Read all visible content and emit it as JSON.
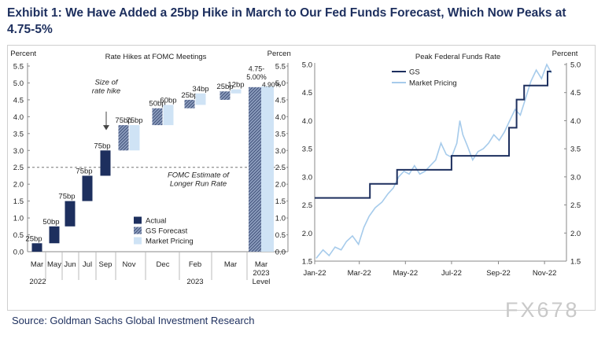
{
  "title": "Exhibit 1: We Have Added a 25bp Hike in March to Our Fed Funds Forecast, Which Now Peaks at 4.75-5%",
  "source": "Source: Goldman Sachs Global Investment Research",
  "watermark": "FX678",
  "colors": {
    "title": "#1d2f5e",
    "actual": "#1d2f5e",
    "forecast": "#6b7fa3",
    "market": "#cfe3f5",
    "market_line": "#a6cbeb"
  },
  "chart_data": [
    {
      "type": "bar",
      "title": "Rate Hikes at FOMC Meetings",
      "ylabel_left": "Percent",
      "ylabel_right": "Percent",
      "ylim": [
        0,
        5.5
      ],
      "yticks": [
        "0.0",
        "0.5",
        "1.0",
        "1.5",
        "2.0",
        "2.5",
        "3.0",
        "3.5",
        "4.0",
        "4.5",
        "5.0",
        "5.5"
      ],
      "categories": [
        "Mar",
        "May",
        "Jun",
        "Jul",
        "Sep",
        "Nov",
        "Dec",
        "Feb",
        "Mar",
        "Mar 2023 Level"
      ],
      "category_lines": [
        [
          "Mar"
        ],
        [
          "May"
        ],
        [
          "Jun"
        ],
        [
          "Jul"
        ],
        [
          "Sep"
        ],
        [
          "Nov"
        ],
        [
          "Dec"
        ],
        [
          "Feb"
        ],
        [
          "Mar"
        ],
        [
          "Mar",
          "2023",
          "Level"
        ]
      ],
      "year_labels": [
        "2022",
        "2023"
      ],
      "waterfall": [
        {
          "cat": "Mar",
          "type": "actual",
          "start": 0.0,
          "end": 0.25,
          "label": "25bp"
        },
        {
          "cat": "May",
          "type": "actual",
          "start": 0.25,
          "end": 0.75,
          "label": "50bp"
        },
        {
          "cat": "Jun",
          "type": "actual",
          "start": 0.75,
          "end": 1.5,
          "label": "75bp"
        },
        {
          "cat": "Jul",
          "type": "actual",
          "start": 1.5,
          "end": 2.25,
          "label": "75bp"
        },
        {
          "cat": "Sep",
          "type": "actual",
          "start": 2.25,
          "end": 3.0,
          "label": "75bp"
        },
        {
          "cat": "Nov",
          "type": "forecast",
          "start": 3.0,
          "end": 3.75,
          "label": "75bp"
        },
        {
          "cat": "Nov",
          "type": "market",
          "start": 3.0,
          "end": 3.75,
          "label": "75bp"
        },
        {
          "cat": "Dec",
          "type": "forecast",
          "start": 3.75,
          "end": 4.25,
          "label": "50bp"
        },
        {
          "cat": "Dec",
          "type": "market",
          "start": 3.75,
          "end": 4.35,
          "label": "60bp"
        },
        {
          "cat": "Feb",
          "type": "forecast",
          "start": 4.25,
          "end": 4.5,
          "label": "25bp"
        },
        {
          "cat": "Feb",
          "type": "market",
          "start": 4.35,
          "end": 4.69,
          "label": "34bp"
        },
        {
          "cat": "Mar",
          "type": "forecast",
          "start": 4.5,
          "end": 4.75,
          "label": "25bp"
        },
        {
          "cat": "Mar",
          "type": "market",
          "start": 4.69,
          "end": 4.81,
          "label": "12bp"
        }
      ],
      "level_bars": [
        {
          "type": "forecast",
          "value": 4.875,
          "label": "4.75-5.00%"
        },
        {
          "type": "market",
          "value": 4.9,
          "label": "4.90%"
        }
      ],
      "reference_line": {
        "value": 2.5,
        "label": "FOMC Estimate of Longer Run Rate"
      },
      "annotation": "Size of rate hike",
      "legend": {
        "position": "bottom-right",
        "items": [
          "Actual",
          "GS Forecast",
          "Market Pricing"
        ]
      }
    },
    {
      "type": "line",
      "title": "Peak Federal Funds Rate",
      "ylabel_right": "Percent",
      "ylim": [
        1.5,
        5.0
      ],
      "yticks": [
        "1.5",
        "2.0",
        "2.5",
        "3.0",
        "3.5",
        "4.0",
        "4.5",
        "5.0"
      ],
      "xticks": [
        "Jan-22",
        "Mar-22",
        "May-22",
        "Jul-22",
        "Sep-22",
        "Nov-22"
      ],
      "legend": {
        "position": "top-left"
      },
      "series": [
        {
          "name": "GS",
          "style": "step",
          "points": [
            [
              "2022-01-01",
              2.625
            ],
            [
              "2022-03-15",
              2.625
            ],
            [
              "2022-03-15",
              2.875
            ],
            [
              "2022-04-20",
              2.875
            ],
            [
              "2022-04-20",
              3.125
            ],
            [
              "2022-07-01",
              3.125
            ],
            [
              "2022-07-01",
              3.375
            ],
            [
              "2022-09-15",
              3.375
            ],
            [
              "2022-09-15",
              3.875
            ],
            [
              "2022-09-25",
              3.875
            ],
            [
              "2022-09-25",
              4.375
            ],
            [
              "2022-10-05",
              4.375
            ],
            [
              "2022-10-05",
              4.625
            ],
            [
              "2022-11-05",
              4.625
            ],
            [
              "2022-11-05",
              4.875
            ],
            [
              "2022-11-10",
              4.875
            ]
          ]
        },
        {
          "name": "Market Pricing",
          "style": "line",
          "points": [
            [
              "2022-01-03",
              1.55
            ],
            [
              "2022-01-12",
              1.7
            ],
            [
              "2022-01-20",
              1.6
            ],
            [
              "2022-01-28",
              1.75
            ],
            [
              "2022-02-05",
              1.7
            ],
            [
              "2022-02-12",
              1.85
            ],
            [
              "2022-02-20",
              1.95
            ],
            [
              "2022-02-28",
              1.8
            ],
            [
              "2022-03-07",
              2.1
            ],
            [
              "2022-03-14",
              2.3
            ],
            [
              "2022-03-22",
              2.45
            ],
            [
              "2022-03-31",
              2.55
            ],
            [
              "2022-04-08",
              2.7
            ],
            [
              "2022-04-15",
              2.8
            ],
            [
              "2022-04-22",
              3.0
            ],
            [
              "2022-04-29",
              3.1
            ],
            [
              "2022-05-06",
              3.05
            ],
            [
              "2022-05-13",
              3.2
            ],
            [
              "2022-05-20",
              3.05
            ],
            [
              "2022-05-27",
              3.1
            ],
            [
              "2022-06-03",
              3.2
            ],
            [
              "2022-06-10",
              3.3
            ],
            [
              "2022-06-17",
              3.6
            ],
            [
              "2022-06-24",
              3.4
            ],
            [
              "2022-07-01",
              3.35
            ],
            [
              "2022-07-08",
              3.6
            ],
            [
              "2022-07-12",
              4.0
            ],
            [
              "2022-07-16",
              3.75
            ],
            [
              "2022-07-22",
              3.55
            ],
            [
              "2022-07-29",
              3.3
            ],
            [
              "2022-08-05",
              3.45
            ],
            [
              "2022-08-12",
              3.5
            ],
            [
              "2022-08-19",
              3.6
            ],
            [
              "2022-08-26",
              3.75
            ],
            [
              "2022-09-02",
              3.65
            ],
            [
              "2022-09-09",
              3.8
            ],
            [
              "2022-09-16",
              4.0
            ],
            [
              "2022-09-23",
              4.2
            ],
            [
              "2022-09-30",
              4.1
            ],
            [
              "2022-10-07",
              4.4
            ],
            [
              "2022-10-14",
              4.7
            ],
            [
              "2022-10-21",
              4.9
            ],
            [
              "2022-10-28",
              4.75
            ],
            [
              "2022-11-04",
              5.0
            ],
            [
              "2022-11-10",
              4.85
            ]
          ]
        }
      ]
    }
  ]
}
